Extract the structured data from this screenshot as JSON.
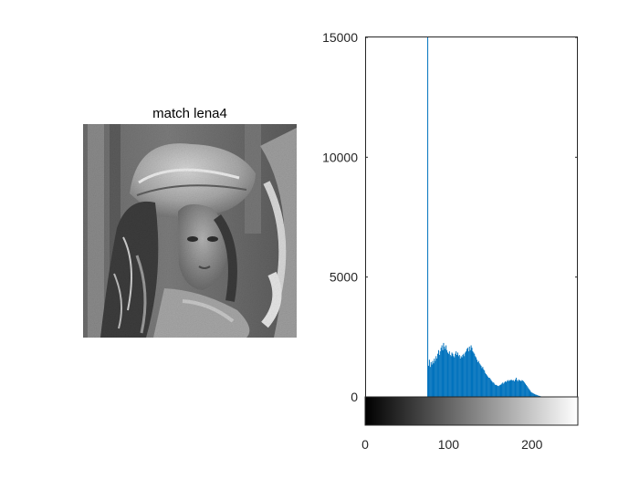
{
  "image_panel": {
    "title": "match lena4",
    "content": "grayscale portrait photo (Lena) after histogram matching"
  },
  "chart_data": {
    "type": "bar",
    "title": "",
    "xlabel": "",
    "ylabel": "",
    "xlim": [
      0,
      255
    ],
    "ylim": [
      0,
      15000
    ],
    "yticks": [
      0,
      5000,
      10000,
      15000
    ],
    "ytick_labels": [
      "0",
      "5000",
      "10000",
      "15000"
    ],
    "xticks": [
      0,
      100,
      200
    ],
    "xtick_labels": [
      "0",
      "100",
      "200"
    ],
    "bar_color": "#0072BD",
    "colorbar": "grayscale ramp 0 (black) to 255 (white) below the histogram",
    "series": [
      {
        "x": [
          75,
          76,
          77,
          78,
          79,
          80,
          81,
          82,
          83,
          84,
          85,
          86,
          87,
          88,
          89,
          90,
          91,
          92,
          93,
          94,
          95,
          96,
          97,
          98,
          99,
          100,
          101,
          102,
          103,
          104,
          105,
          106,
          107,
          108,
          109,
          110,
          111,
          112,
          113,
          114,
          115,
          116,
          117,
          118,
          119,
          120,
          121,
          122,
          123,
          124,
          125,
          126,
          127,
          128,
          129,
          130,
          131,
          132,
          133,
          134,
          135,
          136,
          137,
          138,
          139,
          140,
          141,
          142,
          143,
          144,
          145,
          146,
          147,
          148,
          149,
          150,
          151,
          152,
          153,
          154,
          155,
          156,
          157,
          158,
          159,
          160,
          161,
          162,
          163,
          164,
          165,
          166,
          167,
          168,
          169,
          170,
          171,
          172,
          173,
          174,
          175,
          176,
          177,
          178,
          179,
          180,
          181,
          182,
          183,
          184,
          185,
          186,
          187,
          188,
          189,
          190,
          191,
          192,
          193,
          194,
          195,
          196,
          197,
          198,
          199,
          200,
          201,
          202,
          203,
          204,
          205,
          206,
          207,
          208,
          209,
          210,
          211,
          212,
          213,
          214,
          215,
          216,
          217,
          218,
          219,
          220
        ],
        "values": [
          15000,
          1300,
          1550,
          1250,
          1450,
          1350,
          1500,
          1400,
          1600,
          1500,
          1700,
          1600,
          1800,
          1950,
          1750,
          1900,
          2050,
          2150,
          1950,
          2250,
          2100,
          2000,
          2150,
          1950,
          1850,
          1800,
          1900,
          1750,
          1700,
          1850,
          1800,
          1700,
          1650,
          1800,
          1900,
          1750,
          1850,
          1700,
          1750,
          1600,
          1700,
          1650,
          1750,
          1800,
          1700,
          1850,
          1900,
          2000,
          2050,
          1900,
          2100,
          1950,
          2150,
          2050,
          1900,
          1850,
          1800,
          1700,
          1650,
          1550,
          1450,
          1500,
          1400,
          1350,
          1300,
          1200,
          1250,
          1150,
          1100,
          1000,
          950,
          900,
          850,
          800,
          800,
          750,
          700,
          650,
          600,
          600,
          550,
          500,
          500,
          480,
          460,
          450,
          480,
          500,
          520,
          560,
          600,
          550,
          600,
          650,
          620,
          660,
          700,
          650,
          700,
          680,
          720,
          700,
          680,
          700,
          650,
          720,
          800,
          700,
          650,
          720,
          700,
          680,
          650,
          700,
          680,
          650,
          600,
          550,
          500,
          450,
          400,
          350,
          300,
          250,
          200,
          180,
          160,
          140,
          120,
          100,
          90,
          80,
          60,
          50,
          40,
          30,
          20,
          15,
          10,
          8,
          5,
          3,
          2,
          1,
          0,
          0
        ]
      }
    ]
  }
}
